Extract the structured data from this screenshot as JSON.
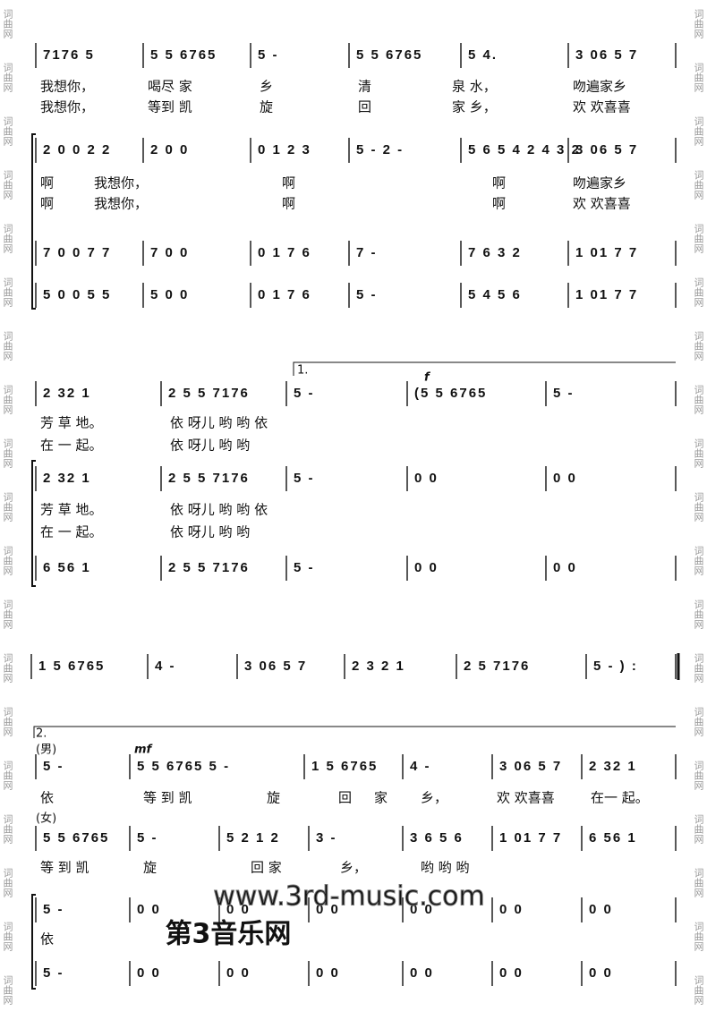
{
  "side_mark": "词曲网",
  "watermark": {
    "site": "www.3rd-music.com",
    "name": "第3音乐网"
  },
  "systems": [
    {
      "lines": [
        {
          "measures": [
            "7176 5",
            "5 5  6765",
            "5   -",
            "5 5  6765",
            "5  4.",
            "3 06  5 7"
          ]
        },
        {
          "measures": [
            "2 0   0 2 2",
            "2 0   0",
            "0 1  2 3",
            "5   -  2   -",
            "5 6 5 4  2 4 3 2",
            "3 06  5 7"
          ]
        },
        {
          "measures": [
            "7 0   0 7 7",
            "7 0   0",
            "0 1  7 6",
            "7   -",
            "7 6  3 2",
            "1 01  7 7"
          ]
        },
        {
          "measures": [
            "5 0   0 5 5",
            "5 0   0",
            "0 1  7 6",
            "5   -",
            "5 4  5 6",
            "1 01  7 7"
          ]
        }
      ],
      "lyrics": [
        {
          "chunks": [
            "我想你，",
            "喝尽 家",
            "乡",
            "清",
            "泉  水，",
            "吻遍家乡"
          ]
        },
        {
          "chunks": [
            "我想你，",
            "等到 凯",
            "旋",
            "回",
            "家  乡，",
            "欢 欢喜喜"
          ]
        },
        {
          "chunks": [
            "啊",
            "我想你，",
            "啊",
            "啊",
            "吻遍家乡"
          ]
        },
        {
          "chunks": [
            "啊",
            "我想你，",
            "啊",
            "啊",
            "欢 欢喜喜"
          ]
        }
      ]
    },
    {
      "marks": [
        "1.",
        "f"
      ],
      "lines": [
        {
          "measures": [
            "2  32  1",
            "2 5 5  7176",
            "5   -",
            "(5  5   6765",
            "5    -"
          ]
        },
        {
          "measures": [
            "2  32  1",
            "2 5 5  7176",
            "5   -",
            "0     0",
            "0     0"
          ]
        },
        {
          "measures": [
            "6  56  1",
            "2 5 5  7176",
            "5   -",
            "0     0",
            "0     0"
          ]
        }
      ],
      "lyrics": [
        {
          "chunks": [
            "芳 草 地。",
            "依 呀儿 哟 哟   依"
          ]
        },
        {
          "chunks": [
            "在 一 起。",
            "依 呀儿 哟 哟"
          ]
        },
        {
          "chunks": [
            "芳 草 地。",
            "依 呀儿 哟 哟   依"
          ]
        },
        {
          "chunks": [
            "在 一 起。",
            "依 呀儿 哟 哟"
          ]
        }
      ]
    },
    {
      "lines": [
        {
          "measures": [
            "1 5  6765",
            "4   -",
            "3 06  5 7",
            "2 3 2  1",
            "2 5  7176",
            "5   - ) :"
          ]
        }
      ],
      "lyrics": []
    },
    {
      "marks": [
        "2.",
        "(男)",
        "(女)",
        "mf"
      ],
      "lines": [
        {
          "measures": [
            "5   -",
            "5 5  6765   5   -",
            "1 5  6765",
            "4   -",
            "3 06  5 7",
            "2 32  1"
          ]
        },
        {
          "measures": [
            "5 5  6765",
            "5   -",
            "5 2 1 2",
            "3   -",
            "3 6  5 6",
            "1 01  7 7",
            "6 56  1"
          ]
        },
        {
          "measures": [
            "5   -",
            "0   0",
            "0   0",
            "0   0",
            "0   0",
            "0   0",
            "0   0"
          ]
        },
        {
          "measures": [
            "5   -",
            "0   0",
            "0   0",
            "0   0",
            "0   0",
            "0   0",
            "0   0"
          ]
        }
      ],
      "lyrics": [
        {
          "chunks": [
            "依",
            "等 到 凯",
            "旋",
            "回",
            "家",
            "乡，",
            "欢 欢喜喜",
            "在一 起。"
          ]
        },
        {
          "chunks": [
            "等 到 凯",
            "旋",
            "回 家",
            "乡，",
            "哟 哟 哟"
          ]
        },
        {
          "chunks": [
            "依"
          ]
        }
      ]
    }
  ]
}
